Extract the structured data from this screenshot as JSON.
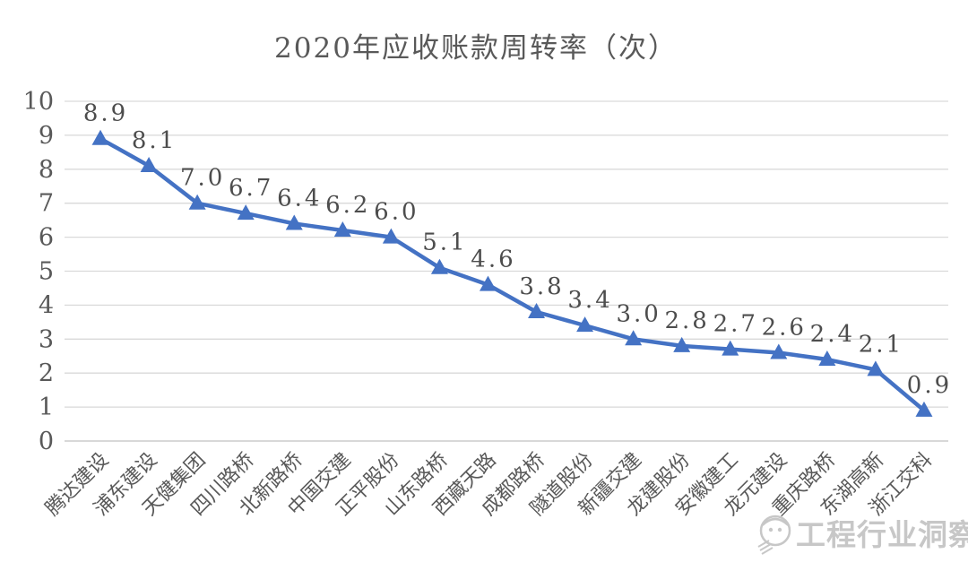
{
  "page": {
    "background_color": "#ffffff"
  },
  "chart_data": {
    "type": "line",
    "title": "2020年应收账款周转率（次）",
    "categories": [
      "腾达建设",
      "浦东建设",
      "天健集团",
      "四川路桥",
      "北新路桥",
      "中国交建",
      "正平股份",
      "山东路桥",
      "西藏天路",
      "成都路桥",
      "隧道股份",
      "新疆交建",
      "龙建股份",
      "安徽建工",
      "龙元建设",
      "重庆路桥",
      "东湖高新",
      "浙江交科"
    ],
    "values": [
      8.9,
      8.1,
      7.0,
      6.7,
      6.4,
      6.2,
      6.0,
      5.1,
      4.6,
      3.8,
      3.4,
      3.0,
      2.8,
      2.7,
      2.6,
      2.4,
      2.1,
      0.9
    ],
    "data_labels": [
      "8.9",
      "8.1",
      "7.0",
      "6.7",
      "6.4",
      "6.2",
      "6.0",
      "5.1",
      "4.6",
      "3.8",
      "3.4",
      "3.0",
      "2.8",
      "2.7",
      "2.6",
      "2.4",
      "2.1",
      "0.9"
    ],
    "xlabel": "",
    "ylabel": "",
    "ylim": [
      0,
      10
    ],
    "y_ticks": [
      0,
      1,
      2,
      3,
      4,
      5,
      6,
      7,
      8,
      9,
      10
    ],
    "grid": true,
    "legend_position": "none",
    "marker": "triangle-up",
    "series_color": "#4472C4",
    "grid_color": "#d9d9d9",
    "axis_line_color": "#c0c0c0",
    "tick_label_color": "#595959",
    "data_label_color": "#4d4d4d",
    "category_label_color": "#595959"
  },
  "watermark": {
    "text": "工程行业洞察",
    "logo": "smiley-hardhat-logo",
    "color": "#9a9a9a"
  }
}
